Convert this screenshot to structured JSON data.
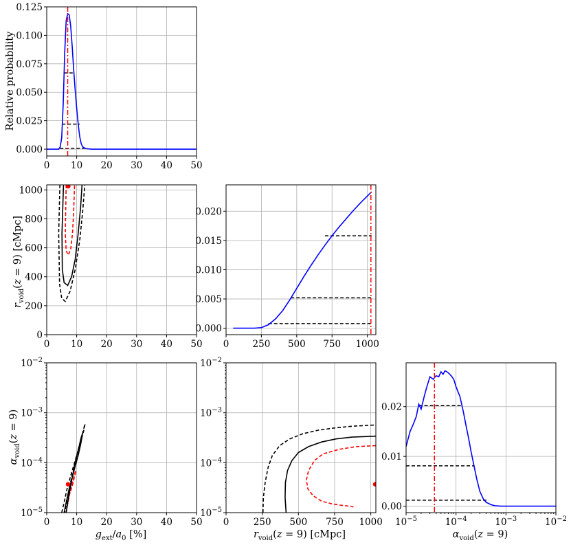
{
  "chart_data": [
    {
      "id": "p_g",
      "type": "line",
      "ylabel": "Relative probability",
      "xlim": [
        0,
        50
      ],
      "ylim": [
        -0.006,
        0.125
      ],
      "xticks": [
        0,
        10,
        20,
        30,
        40,
        50
      ],
      "xtick_labels": [
        "0",
        "10",
        "20",
        "30",
        "40",
        "50"
      ],
      "yticks": [
        0,
        0.025,
        0.05,
        0.075,
        0.1,
        0.125
      ],
      "ytick_labels": [
        "0.000",
        "0.025",
        "0.050",
        "0.075",
        "0.100",
        "0.125"
      ],
      "grid": true,
      "series": [
        {
          "color": "#0000ff",
          "x": [
            0,
            4,
            4.5,
            5,
            5.5,
            6,
            6.5,
            7,
            7.5,
            8,
            8.5,
            9,
            9.5,
            10,
            10.5,
            11,
            11.5,
            12,
            13,
            14,
            15,
            20,
            30,
            40,
            50
          ],
          "y": [
            0,
            0,
            0.002,
            0.01,
            0.04,
            0.085,
            0.113,
            0.119,
            0.118,
            0.108,
            0.09,
            0.07,
            0.052,
            0.036,
            0.022,
            0.011,
            0.005,
            0.002,
            0.0005,
            0.0002,
            0,
            0,
            0,
            0,
            0
          ]
        }
      ],
      "best_fit_x": 7,
      "hlines": [
        {
          "y": 0.067,
          "x": [
            5.7,
            9.3
          ]
        },
        {
          "y": 0.022,
          "x": [
            5.1,
            11.0
          ]
        },
        {
          "y": 0.0008,
          "x": [
            4.4,
            13.0
          ]
        }
      ]
    },
    {
      "id": "p_gr",
      "type": "contour",
      "ylabel": "r_void(z=9) [cMpc]",
      "xlim": [
        0,
        50
      ],
      "ylim": [
        0,
        1035
      ],
      "xticks": [
        0,
        10,
        20,
        30,
        40,
        50
      ],
      "xtick_labels": [
        "0",
        "10",
        "20",
        "30",
        "40",
        "50"
      ],
      "yticks": [
        0,
        200,
        400,
        600,
        800,
        1000
      ],
      "ytick_labels": [
        "0",
        "200",
        "400",
        "600",
        "800",
        "1000"
      ],
      "grid": true,
      "contours": [
        {
          "color": "#ff0000",
          "style": "dashed",
          "x": [
            6.5,
            6.2,
            6.5,
            7.2,
            8.0,
            8.6,
            9.0,
            9.3
          ],
          "y": [
            1035,
            700,
            580,
            550,
            590,
            700,
            850,
            1035
          ]
        },
        {
          "color": "#000000",
          "style": "solid",
          "x": [
            5.6,
            5.1,
            5.2,
            5.8,
            7.0,
            8.3,
            9.5,
            10.5,
            11.3,
            11.8
          ],
          "y": [
            1035,
            700,
            450,
            360,
            340,
            400,
            520,
            700,
            880,
            1035
          ]
        },
        {
          "color": "#000000",
          "style": "dashed",
          "x": [
            4.4,
            4.0,
            4.3,
            5.0,
            6.2,
            7.8,
            9.5,
            11.0,
            12.0,
            12.7
          ],
          "y": [
            1035,
            700,
            350,
            250,
            230,
            300,
            450,
            650,
            850,
            1035
          ]
        }
      ],
      "points": [
        {
          "x": 7.2,
          "y": 1025,
          "color": "#ff0000"
        }
      ]
    },
    {
      "id": "p_r",
      "type": "line",
      "xlim": [
        0,
        1060
      ],
      "ylim": [
        -0.0011,
        0.0245
      ],
      "xticks": [
        0,
        250,
        500,
        750,
        1000
      ],
      "xtick_labels": [
        "0",
        "250",
        "500",
        "750",
        "1000"
      ],
      "yticks": [
        0,
        0.005,
        0.01,
        0.015,
        0.02
      ],
      "ytick_labels": [
        "0.000",
        "0.005",
        "0.010",
        "0.015",
        "0.020"
      ],
      "grid": true,
      "series": [
        {
          "color": "#0000ff",
          "x": [
            50,
            100,
            150,
            200,
            250,
            300,
            350,
            400,
            450,
            500,
            550,
            600,
            650,
            700,
            750,
            800,
            850,
            900,
            950,
            1000,
            1030
          ],
          "y": [
            0,
            0,
            0,
            0,
            0.0001,
            0.0006,
            0.0016,
            0.003,
            0.0048,
            0.0068,
            0.0088,
            0.0107,
            0.0125,
            0.0142,
            0.0158,
            0.0173,
            0.0187,
            0.0201,
            0.0214,
            0.0226,
            0.0233
          ]
        }
      ],
      "best_fit_x": 1025,
      "hlines": [
        {
          "y": 0.0158,
          "x": [
            700,
            1030
          ]
        },
        {
          "y": 0.0052,
          "x": [
            458,
            1030
          ]
        },
        {
          "y": 0.0008,
          "x": [
            300,
            1030
          ]
        }
      ]
    },
    {
      "id": "p_ga",
      "type": "contour",
      "ylabel": "α_void(z=9)",
      "xlabel": "g_ext/a_0 [%]",
      "xlim": [
        0,
        50
      ],
      "ylog": true,
      "ylim": [
        1e-05,
        0.01
      ],
      "xticks": [
        0,
        10,
        20,
        30,
        40,
        50
      ],
      "xtick_labels": [
        "0",
        "10",
        "20",
        "30",
        "40",
        "50"
      ],
      "yticks": [
        1e-05,
        0.0001,
        0.001,
        0.01
      ],
      "ytick_exponents": [
        "-5",
        "-4",
        "-3",
        "-2"
      ],
      "grid": true,
      "contours": [
        {
          "color": "#ff0000",
          "style": "dashed",
          "x": [
            6.5,
            7.0,
            7.5,
            8.2,
            8.8,
            9.2,
            9.5,
            9.8,
            9.5,
            9.0,
            8.5,
            8.0,
            7.6,
            7.2,
            6.8,
            6.5
          ],
          "y": [
            1e-05,
            1.5e-05,
            2.2e-05,
            3e-05,
            4e-05,
            5e-05,
            6e-05,
            7e-05,
            6.5e-05,
            5e-05,
            3.8e-05,
            3e-05,
            2.3e-05,
            1.7e-05,
            1.3e-05,
            1e-05
          ]
        },
        {
          "color": "#000000",
          "style": "solid",
          "x": [
            5.8,
            6.5,
            7.5,
            8.5,
            9.5,
            10.5,
            11.3,
            11.8,
            11.9,
            11.5,
            10.7,
            9.8,
            8.9,
            8.0,
            7.2,
            6.5
          ],
          "y": [
            1e-05,
            1.6e-05,
            3e-05,
            5e-05,
            8.5e-05,
            0.00014,
            0.00023,
            0.00033,
            0.00038,
            0.00032,
            0.0002,
            0.00012,
            6.5e-05,
            3.5e-05,
            1.9e-05,
            1e-05
          ]
        },
        {
          "color": "#000000",
          "style": "dashed",
          "x": [
            5.0,
            5.8,
            6.8,
            8.0,
            9.3,
            10.5,
            11.6,
            12.4,
            12.8,
            12.5,
            11.6,
            10.6,
            9.6,
            8.6,
            7.6,
            6.8,
            6.0
          ],
          "y": [
            1e-05,
            1.6e-05,
            3e-05,
            5.5e-05,
            0.0001,
            0.00018,
            0.0003,
            0.00045,
            0.0006,
            0.00052,
            0.00032,
            0.00019,
            0.00011,
            6e-05,
            3.2e-05,
            1.8e-05,
            1e-05
          ]
        }
      ],
      "points": [
        {
          "x": 7.1,
          "y": 3.7e-05,
          "color": "#ff0000"
        }
      ]
    },
    {
      "id": "p_ra",
      "type": "contour",
      "xlabel": "r_void(z=9) [cMpc]",
      "xlim": [
        0,
        1035
      ],
      "ylog": true,
      "ylim": [
        1e-05,
        0.01
      ],
      "xticks": [
        0,
        250,
        500,
        750,
        1000
      ],
      "xtick_labels": [
        "0",
        "250",
        "500",
        "750",
        "1000"
      ],
      "yticks": [
        1e-05,
        0.0001,
        0.001,
        0.01
      ],
      "ytick_exponents": [
        "-5",
        "-4",
        "-3",
        "-2"
      ],
      "grid": true,
      "contours": [
        {
          "color": "#000000",
          "style": "dashed",
          "x": [
            255,
            258,
            270,
            290,
            320,
            370,
            440,
            530,
            640,
            760,
            880,
            1035
          ],
          "y": [
            1e-05,
            2e-05,
            4e-05,
            8e-05,
            0.00014,
            0.00022,
            0.0003,
            0.00038,
            0.00045,
            0.0005,
            0.00054,
            0.00057
          ]
        },
        {
          "color": "#000000",
          "style": "solid",
          "x": [
            415,
            408,
            410,
            425,
            455,
            500,
            570,
            660,
            760,
            870,
            1035
          ],
          "y": [
            1e-05,
            2e-05,
            4e-05,
            7e-05,
            0.00011,
            0.00016,
            0.00021,
            0.00026,
            0.0003,
            0.000325,
            0.00034
          ]
        },
        {
          "color": "#ff0000",
          "style": "dashed",
          "x": [
            1035,
            900,
            780,
            670,
            610,
            570,
            555,
            565,
            600,
            660,
            730,
            800,
            850,
            880
          ],
          "y": [
            0.00022,
            0.00021,
            0.000185,
            0.00015,
            0.00011,
            7e-05,
            4.5e-05,
            3e-05,
            2.2e-05,
            1.7e-05,
            1.5e-05,
            1.4e-05,
            1.35e-05,
            1.3e-05
          ]
        }
      ],
      "points": [
        {
          "x": 1030,
          "y": 3.7e-05,
          "color": "#ff0000"
        }
      ]
    },
    {
      "id": "p_a",
      "type": "line",
      "xlabel": "α_void(z=9)",
      "xlog": true,
      "xlim": [
        1e-05,
        0.01
      ],
      "ylim": [
        -0.0013,
        0.0288
      ],
      "xticks": [
        1e-05,
        0.0001,
        0.001,
        0.01
      ],
      "xtick_exponents": [
        "-5",
        "-4",
        "-3",
        "-2"
      ],
      "yticks": [
        0,
        0.01,
        0.02
      ],
      "ytick_labels": [
        "0.00",
        "0.01",
        "0.02"
      ],
      "grid": true,
      "series": [
        {
          "color": "#0000ff",
          "x": [
            1e-05,
            1.2e-05,
            1.4e-05,
            1.6e-05,
            1.8e-05,
            2e-05,
            2.3e-05,
            2.6e-05,
            3e-05,
            3.5e-05,
            4e-05,
            4.5e-05,
            5e-05,
            5.5e-05,
            6e-05,
            6.5e-05,
            7e-05,
            8e-05,
            9e-05,
            0.0001,
            0.00012,
            0.00014,
            0.00016,
            0.00018,
            0.0002,
            0.00023,
            0.00026,
            0.0003,
            0.00035,
            0.0004,
            0.0005,
            0.0006,
            0.0008,
            0.001,
            0.002,
            0.005,
            0.01
          ],
          "y": [
            0.012,
            0.015,
            0.0165,
            0.018,
            0.0205,
            0.0195,
            0.022,
            0.024,
            0.026,
            0.0255,
            0.0262,
            0.026,
            0.027,
            0.0265,
            0.0272,
            0.027,
            0.0268,
            0.0262,
            0.0255,
            0.024,
            0.022,
            0.019,
            0.016,
            0.0135,
            0.011,
            0.008,
            0.0055,
            0.003,
            0.0015,
            0.0008,
            0.0003,
            0.0001,
            0,
            0,
            0,
            0,
            0
          ]
        }
      ],
      "best_fit_x": 3.7e-05,
      "hlines": [
        {
          "y": 0.0202,
          "x": [
            1.8e-05,
            0.000135
          ]
        },
        {
          "y": 0.0081,
          "x": [
            1e-05,
            0.000235
          ]
        },
        {
          "y": 0.0012,
          "x": [
            1e-05,
            0.00045
          ]
        }
      ]
    }
  ]
}
